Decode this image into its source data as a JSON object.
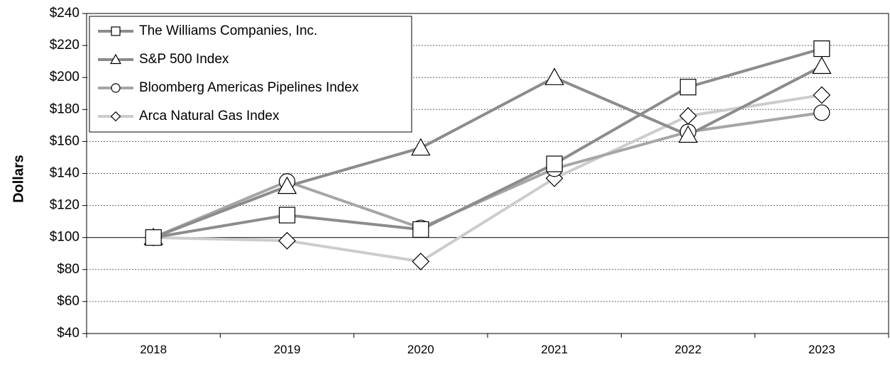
{
  "chart_data": {
    "type": "line",
    "title": "",
    "xlabel": "",
    "ylabel": "Dollars",
    "categories": [
      "2018",
      "2019",
      "2020",
      "2021",
      "2022",
      "2023"
    ],
    "ylim": [
      40,
      240
    ],
    "yticks": [
      40,
      60,
      80,
      100,
      120,
      140,
      160,
      180,
      200,
      220,
      240
    ],
    "ytick_labels": [
      "$40",
      "$60",
      "$80",
      "$100",
      "$120",
      "$140",
      "$160",
      "$180",
      "$200",
      "$220",
      "$240"
    ],
    "grid": true,
    "legend_position": "top-left",
    "series": [
      {
        "name": "The Williams Companies, Inc.",
        "marker": "square",
        "color": "#8c8c8c",
        "values": [
          100,
          114,
          105,
          146,
          194,
          218
        ]
      },
      {
        "name": "S&P 500 Index",
        "marker": "triangle",
        "color": "#8c8c8c",
        "values": [
          100,
          132,
          156,
          200,
          164,
          207
        ]
      },
      {
        "name": "Bloomberg Americas Pipelines Index",
        "marker": "circle",
        "color": "#a6a6a6",
        "values": [
          100,
          135,
          106,
          143,
          166,
          178
        ]
      },
      {
        "name": "Arca Natural Gas Index",
        "marker": "diamond",
        "color": "#cccccc",
        "values": [
          100,
          98,
          85,
          137,
          176,
          189
        ]
      }
    ]
  }
}
